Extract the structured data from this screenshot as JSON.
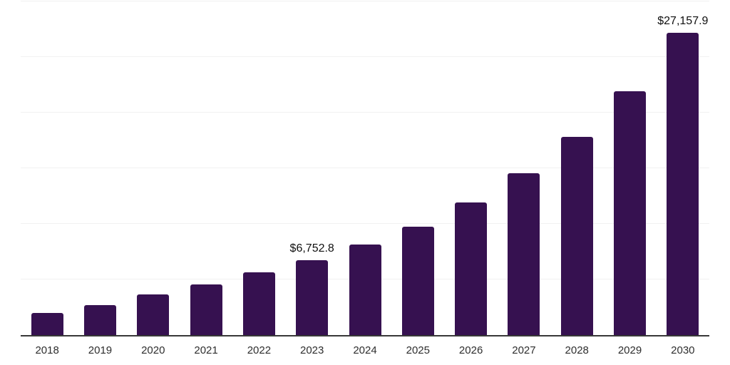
{
  "chart_data": {
    "type": "bar",
    "title": "",
    "xlabel": "",
    "ylabel": "",
    "categories": [
      "2018",
      "2019",
      "2020",
      "2021",
      "2022",
      "2023",
      "2024",
      "2025",
      "2026",
      "2027",
      "2028",
      "2029",
      "2030"
    ],
    "values": [
      1980,
      2690,
      3650,
      4540,
      5630,
      6752.8,
      8130,
      9730,
      11900,
      14530,
      17850,
      21950,
      27157.9
    ],
    "ylim": [
      0,
      30000
    ],
    "gridline_step": 5000,
    "grid": "horizontal-only",
    "y_tick_labels_visible": false,
    "legend": "none",
    "annotations": [
      {
        "category": "2023",
        "text": "$6,752.8"
      },
      {
        "category": "2030",
        "text": "$27,157.9"
      }
    ],
    "colors": {
      "bar": "#361150",
      "axis_line": "#383838",
      "gridline": "#f1f1f1",
      "x_tick_label": "#2e2e2e",
      "value_label": "#101010",
      "background": "#ffffff"
    }
  }
}
